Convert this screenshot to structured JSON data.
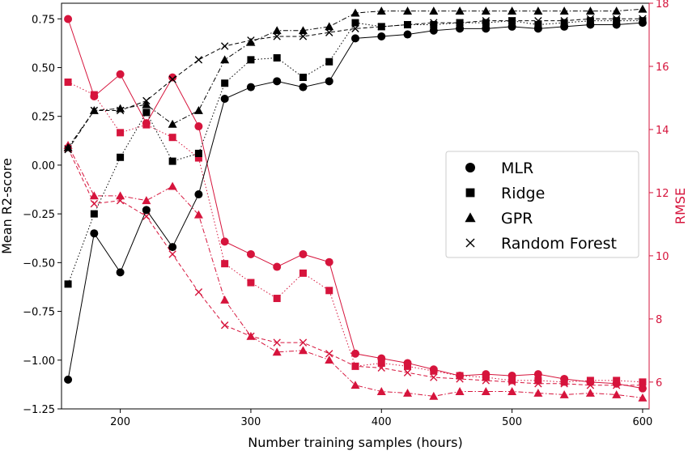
{
  "chart_data": {
    "type": "line",
    "xlabel": "Number training samples (hours)",
    "ylabel_left": "Mean R2-score",
    "ylabel_right": "RMSE",
    "xlim": [
      155,
      605
    ],
    "ylim_left": [
      -1.25,
      0.83
    ],
    "ylim_right": [
      5.15,
      18.0
    ],
    "x_ticks": [
      200,
      300,
      400,
      500,
      600
    ],
    "y_ticks_left": [
      -1.25,
      -1.0,
      -0.75,
      -0.5,
      -0.25,
      0.0,
      0.25,
      0.5,
      0.75
    ],
    "y_ticks_left_labels": [
      "−1.25",
      "−1.00",
      "−0.75",
      "−0.50",
      "−0.25",
      "0.00",
      "0.25",
      "0.50",
      "0.75"
    ],
    "y_ticks_right": [
      6,
      8,
      10,
      12,
      14,
      16,
      18
    ],
    "grid": false,
    "legend_position": "center-right",
    "legend": [
      {
        "name": "MLR",
        "marker": "circle"
      },
      {
        "name": "Ridge",
        "marker": "square"
      },
      {
        "name": "GPR",
        "marker": "triangle"
      },
      {
        "name": "Random Forest",
        "marker": "x"
      }
    ],
    "colors": {
      "r2": "#000000",
      "rmse": "#d6143c"
    },
    "x": [
      160,
      180,
      200,
      220,
      240,
      260,
      280,
      300,
      320,
      340,
      360,
      380,
      400,
      420,
      440,
      460,
      480,
      500,
      520,
      540,
      560,
      580,
      600
    ],
    "series": [
      {
        "name": "MLR",
        "axis": "left",
        "marker": "circle",
        "dash": "solid",
        "values": [
          -1.1,
          -0.35,
          -0.55,
          -0.23,
          -0.42,
          -0.15,
          0.34,
          0.4,
          0.43,
          0.4,
          0.43,
          0.65,
          0.66,
          0.67,
          0.69,
          0.7,
          0.7,
          0.71,
          0.7,
          0.71,
          0.72,
          0.72,
          0.73
        ]
      },
      {
        "name": "Ridge",
        "axis": "left",
        "marker": "square",
        "dash": "dotted",
        "values": [
          -0.61,
          -0.25,
          0.04,
          0.27,
          0.02,
          0.06,
          0.42,
          0.54,
          0.55,
          0.45,
          0.53,
          0.73,
          0.71,
          0.72,
          0.72,
          0.73,
          0.73,
          0.74,
          0.72,
          0.73,
          0.74,
          0.74,
          0.74
        ]
      },
      {
        "name": "GPR",
        "axis": "left",
        "marker": "triangle",
        "dash": "dashdot",
        "values": [
          0.09,
          0.28,
          0.29,
          0.31,
          0.21,
          0.28,
          0.54,
          0.63,
          0.69,
          0.69,
          0.71,
          0.78,
          0.79,
          0.79,
          0.79,
          0.79,
          0.79,
          0.79,
          0.79,
          0.79,
          0.79,
          0.79,
          0.8
        ]
      },
      {
        "name": "Random Forest",
        "axis": "left",
        "marker": "x",
        "dash": "dashed",
        "values": [
          0.08,
          0.28,
          0.28,
          0.33,
          0.44,
          0.54,
          0.61,
          0.64,
          0.66,
          0.66,
          0.68,
          0.7,
          0.71,
          0.72,
          0.73,
          0.73,
          0.74,
          0.74,
          0.74,
          0.74,
          0.75,
          0.75,
          0.75
        ]
      },
      {
        "name": "MLR RMSE",
        "axis": "right",
        "marker": "circle",
        "dash": "solid",
        "values": [
          17.5,
          15.05,
          15.75,
          14.2,
          15.65,
          14.1,
          10.45,
          10.05,
          9.65,
          10.05,
          9.8,
          6.9,
          6.75,
          6.6,
          6.4,
          6.2,
          6.25,
          6.2,
          6.25,
          6.1,
          6.0,
          5.95,
          5.8
        ]
      },
      {
        "name": "Ridge RMSE",
        "axis": "right",
        "marker": "square",
        "dash": "dotted",
        "values": [
          15.5,
          15.1,
          13.9,
          14.15,
          13.75,
          13.1,
          9.75,
          9.15,
          8.65,
          9.45,
          8.9,
          6.5,
          6.6,
          6.5,
          6.35,
          6.2,
          6.15,
          6.05,
          6.05,
          6.0,
          6.05,
          6.05,
          6.0
        ]
      },
      {
        "name": "GPR RMSE",
        "axis": "right",
        "marker": "triangle",
        "dash": "dashdot",
        "values": [
          13.5,
          11.9,
          11.9,
          11.75,
          12.2,
          11.3,
          8.6,
          7.45,
          6.95,
          7.0,
          6.7,
          5.9,
          5.7,
          5.65,
          5.55,
          5.7,
          5.7,
          5.7,
          5.65,
          5.6,
          5.65,
          5.6,
          5.5
        ]
      },
      {
        "name": "Random Forest RMSE",
        "axis": "right",
        "marker": "x",
        "dash": "dashed",
        "values": [
          13.4,
          11.65,
          11.75,
          11.25,
          10.05,
          8.85,
          7.8,
          7.45,
          7.25,
          7.25,
          6.9,
          6.5,
          6.45,
          6.3,
          6.15,
          6.1,
          6.05,
          6.0,
          5.95,
          5.95,
          5.9,
          5.9,
          5.9
        ]
      }
    ]
  }
}
